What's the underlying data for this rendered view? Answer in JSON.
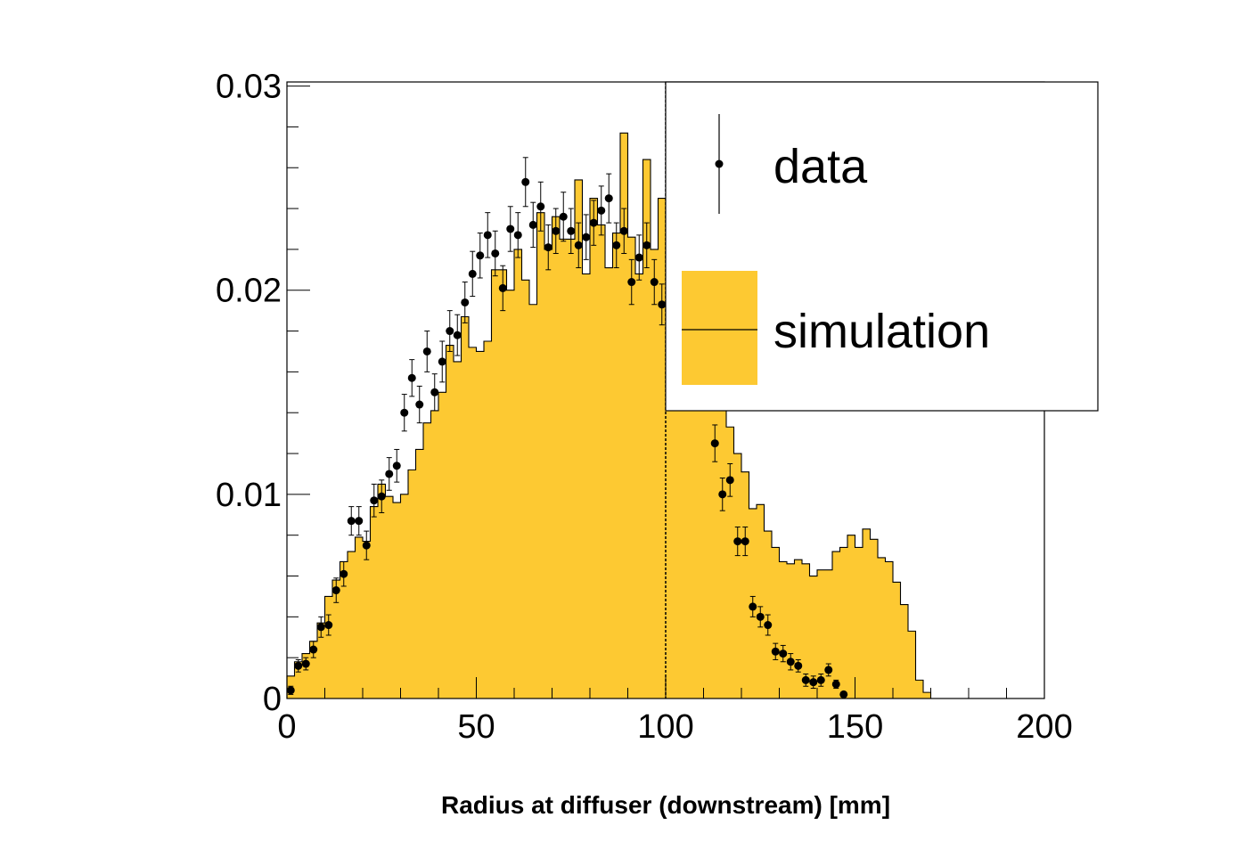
{
  "chart_data": {
    "type": "bar",
    "title": "",
    "xlabel": "Radius at diffuser (downstream) [mm]",
    "ylabel": "",
    "xlim": [
      0,
      200
    ],
    "ylim": [
      0,
      0.0302
    ],
    "bin_width": 2,
    "x_ticks": [
      {
        "value": 0,
        "label": "0"
      },
      {
        "value": 50,
        "label": "50"
      },
      {
        "value": 100,
        "label": "100"
      },
      {
        "value": 150,
        "label": "150"
      },
      {
        "value": 200,
        "label": "200"
      }
    ],
    "y_ticks": [
      {
        "value": 0,
        "label": "0"
      },
      {
        "value": 0.01,
        "label": "0.01"
      },
      {
        "value": 0.02,
        "label": "0.02"
      },
      {
        "value": 0.03,
        "label": "0.03"
      }
    ],
    "reference_line_x": 100,
    "grid": false,
    "legend_position": "top-right",
    "legend": [
      {
        "label": "data",
        "style": "marker-with-errorbar"
      },
      {
        "label": "simulation",
        "style": "filled-histogram"
      }
    ],
    "series": [
      {
        "name": "simulation",
        "style": "filled-histogram",
        "color": "#fdc932",
        "values": [
          0.0011,
          0.0018,
          0.0022,
          0.0028,
          0.0037,
          0.005,
          0.0058,
          0.0067,
          0.0072,
          0.0079,
          0.0077,
          0.0094,
          0.0105,
          0.0099,
          0.0096,
          0.01,
          0.0112,
          0.0122,
          0.0135,
          0.0141,
          0.015,
          0.0173,
          0.0165,
          0.0187,
          0.0172,
          0.017,
          0.0175,
          0.021,
          0.021,
          0.02,
          0.022,
          0.0205,
          0.0193,
          0.0238,
          0.022,
          0.0236,
          0.0225,
          0.0225,
          0.0254,
          0.0208,
          0.0245,
          0.0232,
          0.0211,
          0.0228,
          0.0277,
          0.0226,
          0.0208,
          0.0264,
          0.022,
          0.0245,
          0.0244,
          0.021,
          0.0193,
          0.0208,
          0.019,
          0.0175,
          0.0163,
          0.0151,
          0.0133,
          0.012,
          0.0111,
          0.0093,
          0.0095,
          0.0082,
          0.0074,
          0.0067,
          0.0066,
          0.0068,
          0.0066,
          0.006,
          0.0063,
          0.0063,
          0.0072,
          0.0074,
          0.008,
          0.0074,
          0.0083,
          0.0078,
          0.0069,
          0.0067,
          0.0057,
          0.0046,
          0.0033,
          0.0009,
          0.0003,
          0,
          0,
          0,
          0,
          0,
          0,
          0,
          0,
          0,
          0,
          0,
          0,
          0,
          0,
          0
        ]
      },
      {
        "name": "data",
        "style": "markers-errorbars",
        "color": "#000000",
        "points": [
          {
            "x": 1,
            "y": 0.0004,
            "err": 0.0002
          },
          {
            "x": 3,
            "y": 0.0016,
            "err": 0.0003
          },
          {
            "x": 5,
            "y": 0.0017,
            "err": 0.0003
          },
          {
            "x": 7,
            "y": 0.0024,
            "err": 0.0004
          },
          {
            "x": 9,
            "y": 0.0035,
            "err": 0.0005
          },
          {
            "x": 11,
            "y": 0.0036,
            "err": 0.0005
          },
          {
            "x": 13,
            "y": 0.0053,
            "err": 0.0006
          },
          {
            "x": 15,
            "y": 0.0061,
            "err": 0.0006
          },
          {
            "x": 17,
            "y": 0.0087,
            "err": 0.0007
          },
          {
            "x": 19,
            "y": 0.0087,
            "err": 0.0007
          },
          {
            "x": 21,
            "y": 0.0075,
            "err": 0.0007
          },
          {
            "x": 23,
            "y": 0.0097,
            "err": 0.0008
          },
          {
            "x": 25,
            "y": 0.0099,
            "err": 0.0008
          },
          {
            "x": 27,
            "y": 0.011,
            "err": 0.0008
          },
          {
            "x": 29,
            "y": 0.0114,
            "err": 0.0008
          },
          {
            "x": 31,
            "y": 0.014,
            "err": 0.0009
          },
          {
            "x": 33,
            "y": 0.0157,
            "err": 0.0009
          },
          {
            "x": 35,
            "y": 0.0144,
            "err": 0.0009
          },
          {
            "x": 37,
            "y": 0.017,
            "err": 0.001
          },
          {
            "x": 39,
            "y": 0.015,
            "err": 0.0009
          },
          {
            "x": 41,
            "y": 0.0165,
            "err": 0.001
          },
          {
            "x": 43,
            "y": 0.018,
            "err": 0.001
          },
          {
            "x": 45,
            "y": 0.0178,
            "err": 0.001
          },
          {
            "x": 47,
            "y": 0.0194,
            "err": 0.001
          },
          {
            "x": 49,
            "y": 0.0208,
            "err": 0.0011
          },
          {
            "x": 51,
            "y": 0.0217,
            "err": 0.0011
          },
          {
            "x": 53,
            "y": 0.0227,
            "err": 0.0011
          },
          {
            "x": 55,
            "y": 0.0218,
            "err": 0.0011
          },
          {
            "x": 57,
            "y": 0.0201,
            "err": 0.0011
          },
          {
            "x": 59,
            "y": 0.023,
            "err": 0.0011
          },
          {
            "x": 61,
            "y": 0.0227,
            "err": 0.0011
          },
          {
            "x": 63,
            "y": 0.0253,
            "err": 0.0012
          },
          {
            "x": 65,
            "y": 0.0232,
            "err": 0.0011
          },
          {
            "x": 67,
            "y": 0.0241,
            "err": 0.0012
          },
          {
            "x": 69,
            "y": 0.0221,
            "err": 0.0011
          },
          {
            "x": 71,
            "y": 0.0229,
            "err": 0.0011
          },
          {
            "x": 73,
            "y": 0.0236,
            "err": 0.0012
          },
          {
            "x": 75,
            "y": 0.0229,
            "err": 0.0011
          },
          {
            "x": 77,
            "y": 0.0222,
            "err": 0.0011
          },
          {
            "x": 79,
            "y": 0.0226,
            "err": 0.0011
          },
          {
            "x": 81,
            "y": 0.0233,
            "err": 0.0011
          },
          {
            "x": 83,
            "y": 0.0239,
            "err": 0.0012
          },
          {
            "x": 85,
            "y": 0.0245,
            "err": 0.0012
          },
          {
            "x": 87,
            "y": 0.0222,
            "err": 0.0011
          },
          {
            "x": 89,
            "y": 0.0229,
            "err": 0.0011
          },
          {
            "x": 91,
            "y": 0.0204,
            "err": 0.0011
          },
          {
            "x": 93,
            "y": 0.0216,
            "err": 0.0011
          },
          {
            "x": 95,
            "y": 0.0222,
            "err": 0.0011
          },
          {
            "x": 97,
            "y": 0.0204,
            "err": 0.0011
          },
          {
            "x": 99,
            "y": 0.0193,
            "err": 0.001
          },
          {
            "x": 113,
            "y": 0.0125,
            "err": 0.0009
          },
          {
            "x": 115,
            "y": 0.01,
            "err": 0.0008
          },
          {
            "x": 117,
            "y": 0.0107,
            "err": 0.0008
          },
          {
            "x": 119,
            "y": 0.0077,
            "err": 0.0007
          },
          {
            "x": 121,
            "y": 0.0077,
            "err": 0.0007
          },
          {
            "x": 123,
            "y": 0.0045,
            "err": 0.0005
          },
          {
            "x": 125,
            "y": 0.004,
            "err": 0.0005
          },
          {
            "x": 127,
            "y": 0.0036,
            "err": 0.0005
          },
          {
            "x": 129,
            "y": 0.0023,
            "err": 0.0004
          },
          {
            "x": 131,
            "y": 0.0022,
            "err": 0.0004
          },
          {
            "x": 133,
            "y": 0.0018,
            "err": 0.0004
          },
          {
            "x": 135,
            "y": 0.0016,
            "err": 0.0003
          },
          {
            "x": 137,
            "y": 0.0009,
            "err": 0.0003
          },
          {
            "x": 139,
            "y": 0.0008,
            "err": 0.0003
          },
          {
            "x": 141,
            "y": 0.0009,
            "err": 0.0003
          },
          {
            "x": 143,
            "y": 0.0014,
            "err": 0.0003
          },
          {
            "x": 145,
            "y": 0.0007,
            "err": 0.0002
          },
          {
            "x": 147,
            "y": 0.0002,
            "err": 0.0001
          }
        ]
      }
    ]
  }
}
